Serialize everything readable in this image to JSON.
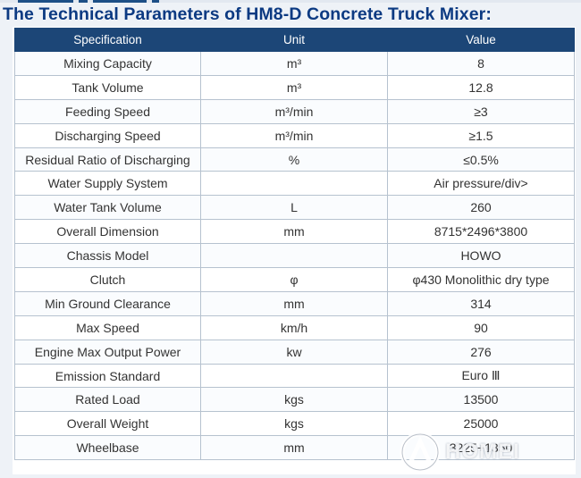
{
  "title": "The Technical Parameters of HM8-D Concrete Truck Mixer:",
  "table": {
    "headers": [
      "Specification",
      "Unit",
      "Value"
    ],
    "rows": [
      [
        "Mixing Capacity",
        "m³",
        "8"
      ],
      [
        "Tank Volume",
        "m³",
        "12.8"
      ],
      [
        "Feeding Speed",
        "m³/min",
        "≥3"
      ],
      [
        "Discharging Speed",
        "m³/min",
        "≥1.5"
      ],
      [
        "Residual Ratio of Discharging",
        "%",
        "≤0.5%"
      ],
      [
        "Water Supply System",
        "",
        "Air pressure/div>"
      ],
      [
        "Water Tank Volume",
        "L",
        "260"
      ],
      [
        "Overall Dimension",
        "mm",
        "8715*2496*3800"
      ],
      [
        "Chassis Model",
        "",
        "HOWO"
      ],
      [
        "Clutch",
        "φ",
        "φ430 Monolithic dry type"
      ],
      [
        "Min Ground Clearance",
        "mm",
        "314"
      ],
      [
        "Max Speed",
        "km/h",
        "90"
      ],
      [
        "Engine Max Output Power",
        "kw",
        "276"
      ],
      [
        "Emission Standard",
        "",
        "Euro Ⅲ"
      ],
      [
        "Rated Load",
        "kgs",
        "13500"
      ],
      [
        "Overall Weight",
        "kgs",
        "25000"
      ],
      [
        "Wheelbase",
        "mm",
        "3225+1350"
      ]
    ]
  },
  "watermark": {
    "text": "HOMEI",
    "icon": "brand-logo-icon"
  },
  "colors": {
    "title": "#0c3a82",
    "header_bg": "#1c4677",
    "header_text": "#ffffff",
    "border": "#b6c2cf",
    "page_bg": "#eef2f7"
  }
}
